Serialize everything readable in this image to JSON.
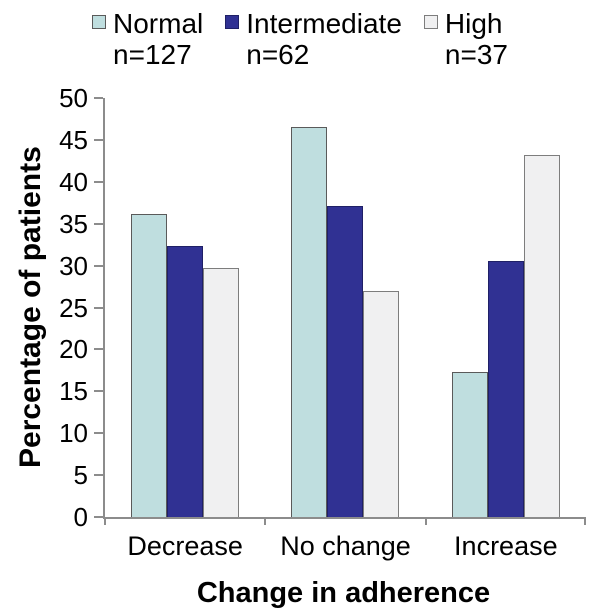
{
  "chart_data": {
    "type": "bar",
    "title": "",
    "xlabel": "Change in adherence",
    "ylabel": "Percentage of patients",
    "categories": [
      "Decrease",
      "No change",
      "Increase"
    ],
    "series": [
      {
        "name": "Normal",
        "n_label": "n=127",
        "values": [
          36.2,
          46.5,
          17.3
        ],
        "color": "#BFDEDF",
        "border_color": "#5A5A5A"
      },
      {
        "name": "Intermediate",
        "n_label": "n=62",
        "values": [
          32.3,
          37.1,
          30.6
        ],
        "color": "#303193",
        "border_color": "#1F2066"
      },
      {
        "name": "High",
        "n_label": "n=37",
        "values": [
          29.7,
          27.0,
          43.2
        ],
        "color": "#F0F0F1",
        "border_color": "#7D7D7D"
      }
    ],
    "ylim": [
      0,
      50
    ],
    "yticks": [
      0,
      5,
      10,
      15,
      20,
      25,
      30,
      35,
      40,
      45,
      50
    ],
    "grid": false,
    "legend_position": "top",
    "axis_color": "#8C8C8C",
    "text_color": "#000000",
    "background": "#FFFFFF"
  }
}
